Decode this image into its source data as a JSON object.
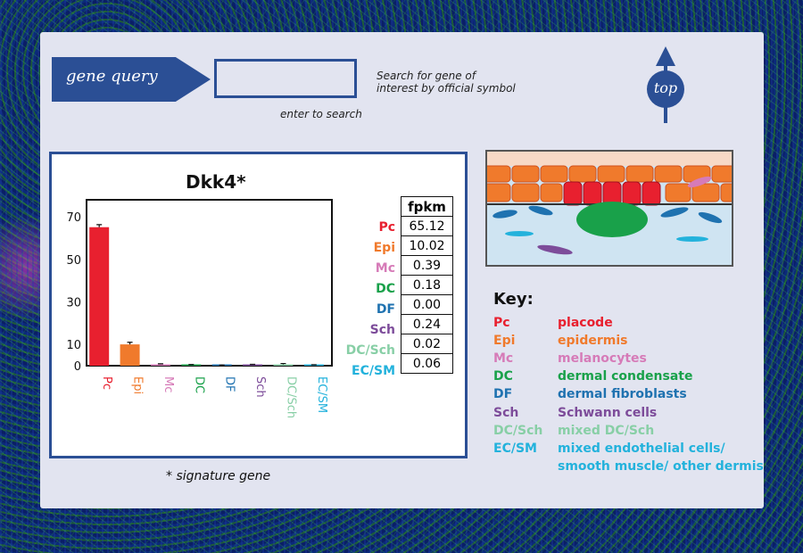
{
  "query": {
    "button_label": "gene query",
    "input_value": "",
    "hint": "enter to search",
    "help_line1": "Search for gene of",
    "help_line2": "interest by official symbol"
  },
  "top_button_label": "top",
  "footnote": "* signature gene",
  "colors": {
    "Pc": "#e8202f",
    "Epi": "#f07a2c",
    "Mc": "#d67bb8",
    "DC": "#19a14a",
    "DF": "#1f72b0",
    "Sch": "#7d4c9a",
    "DC/Sch": "#88cfa6",
    "EC/SM": "#23b2dc"
  },
  "chart_data": {
    "type": "bar",
    "title": "Dkk4*",
    "categories": [
      "Pc",
      "Epi",
      "Mc",
      "DC",
      "DF",
      "Sch",
      "DC/Sch",
      "EC/SM"
    ],
    "values": [
      65.12,
      10.02,
      0.39,
      0.18,
      0.0,
      0.24,
      0.02,
      0.06
    ],
    "errors": [
      1.2,
      1.0,
      0.5,
      0.4,
      0.3,
      0.4,
      1.0,
      0.4
    ],
    "yticks": [
      0,
      10,
      30,
      50,
      70
    ],
    "ylim": [
      0,
      78
    ],
    "grid": false
  },
  "fpkm_table": {
    "header": "fpkm",
    "rows": [
      {
        "label": "Pc",
        "value": "65.12"
      },
      {
        "label": "Epi",
        "value": "10.02"
      },
      {
        "label": "Mc",
        "value": "0.39"
      },
      {
        "label": "DC",
        "value": "0.18"
      },
      {
        "label": "DF",
        "value": "0.00"
      },
      {
        "label": "Sch",
        "value": "0.24"
      },
      {
        "label": "DC/Sch",
        "value": "0.02"
      },
      {
        "label": "EC/SM",
        "value": "0.06"
      }
    ]
  },
  "key": {
    "title": "Key:",
    "items": [
      {
        "abbr": "Pc",
        "desc": "placode"
      },
      {
        "abbr": "Epi",
        "desc": "epidermis"
      },
      {
        "abbr": "Mc",
        "desc": "melanocytes"
      },
      {
        "abbr": "DC",
        "desc": "dermal condensate"
      },
      {
        "abbr": "DF",
        "desc": "dermal fibroblasts"
      },
      {
        "abbr": "Sch",
        "desc": "Schwann cells"
      },
      {
        "abbr": "DC/Sch",
        "desc": "mixed DC/Sch"
      },
      {
        "abbr": "EC/SM",
        "desc": "mixed endothelial cells/"
      },
      {
        "abbr": "",
        "desc": "smooth muscle/ other dermis"
      }
    ]
  }
}
